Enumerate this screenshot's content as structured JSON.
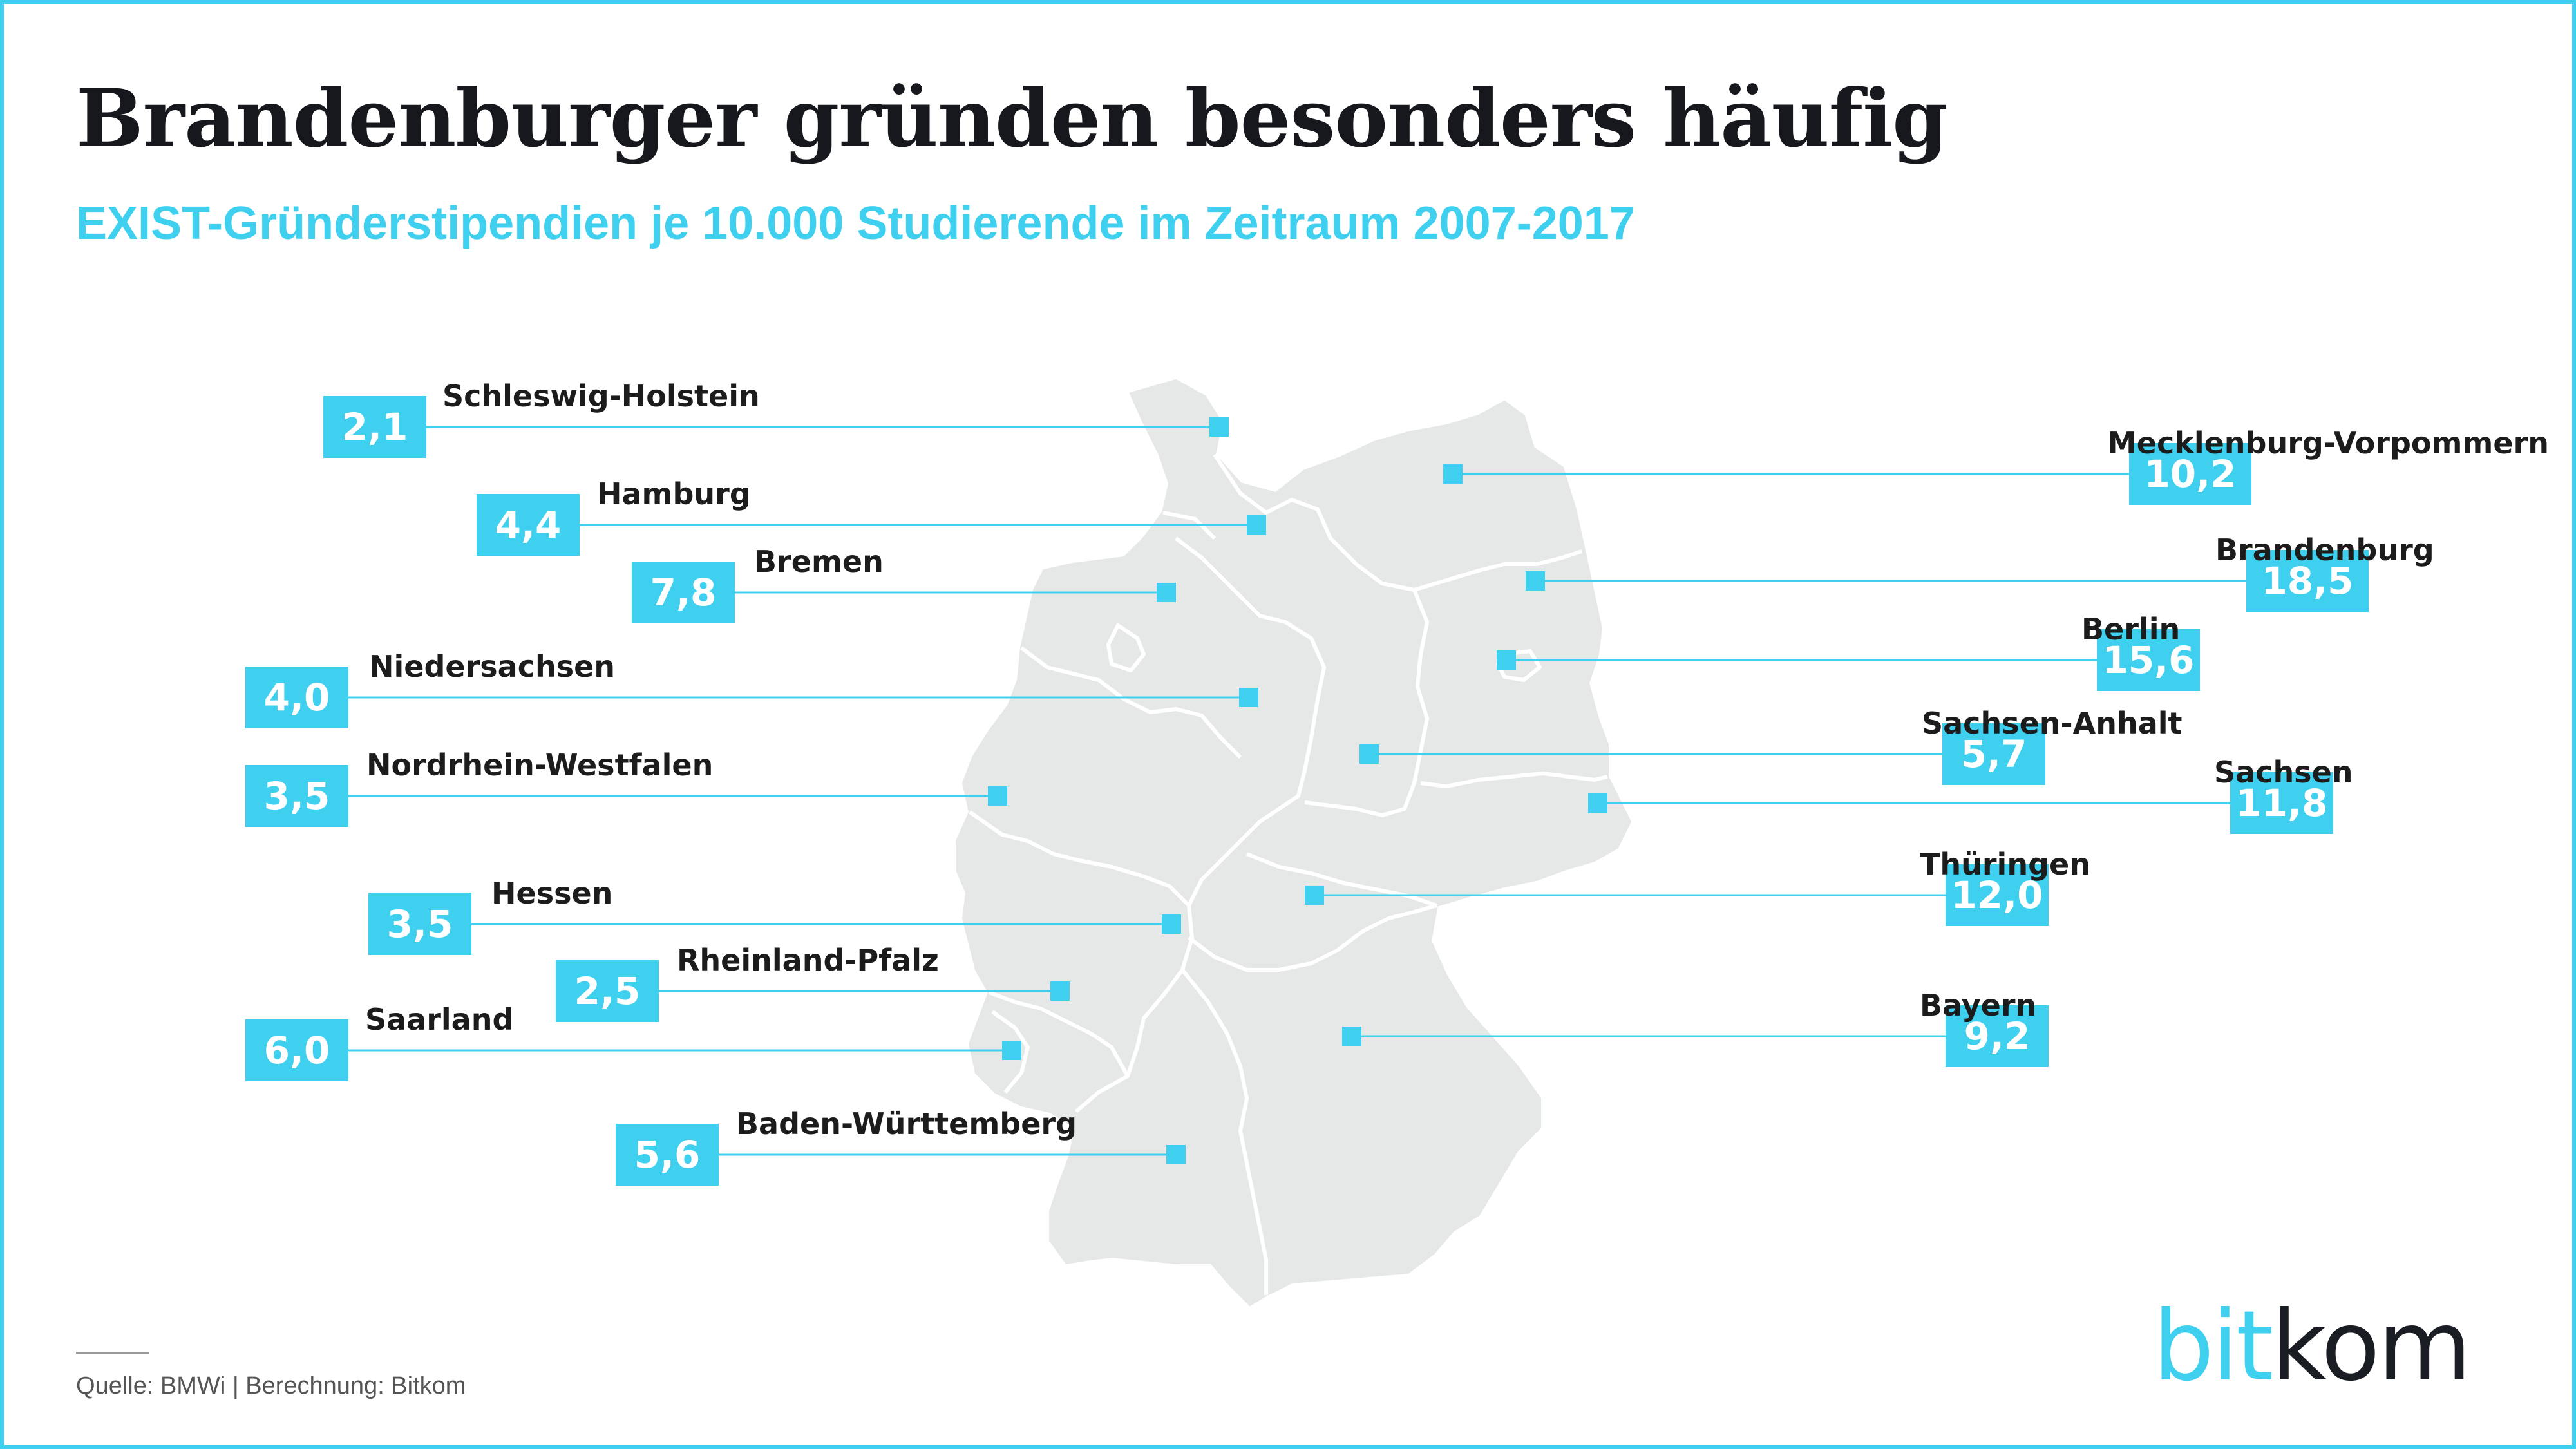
{
  "title": "Brandenburger gründen besonders häufig",
  "subtitle": "EXIST-Gründerstipendien je 10.000 Studierende im Zeitraum 2007-2017",
  "source": "Quelle: BMWi | Berechnung: Bitkom",
  "logo": {
    "part1": "bit",
    "part2": "kom",
    "alt": "bitkom"
  },
  "colors": {
    "accent": "#3fd0f0",
    "map_fill": "#e6e8e7",
    "border": "#ffffff",
    "text": "#1c1c1c"
  },
  "map_layers": [
    "germany-outline",
    "state-borders"
  ],
  "states": [
    {
      "name": "Schleswig-Holstein",
      "value": "2,1",
      "side": "left"
    },
    {
      "name": "Hamburg",
      "value": "4,4",
      "side": "left"
    },
    {
      "name": "Bremen",
      "value": "7,8",
      "side": "left"
    },
    {
      "name": "Niedersachsen",
      "value": "4,0",
      "side": "left"
    },
    {
      "name": "Nordrhein-Westfalen",
      "value": "3,5",
      "side": "left"
    },
    {
      "name": "Hessen",
      "value": "3,5",
      "side": "left"
    },
    {
      "name": "Rheinland-Pfalz",
      "value": "2,5",
      "side": "left"
    },
    {
      "name": "Saarland",
      "value": "6,0",
      "side": "left"
    },
    {
      "name": "Baden-Württemberg",
      "value": "5,6",
      "side": "left"
    },
    {
      "name": "Mecklenburg-Vorpommern",
      "value": "10,2",
      "side": "right"
    },
    {
      "name": "Brandenburg",
      "value": "18,5",
      "side": "right"
    },
    {
      "name": "Berlin",
      "value": "15,6",
      "side": "right"
    },
    {
      "name": "Sachsen-Anhalt",
      "value": "5,7",
      "side": "right"
    },
    {
      "name": "Sachsen",
      "value": "11,8",
      "side": "right"
    },
    {
      "name": "Thüringen",
      "value": "12,0",
      "side": "right"
    },
    {
      "name": "Bayern",
      "value": "9,2",
      "side": "right"
    }
  ]
}
